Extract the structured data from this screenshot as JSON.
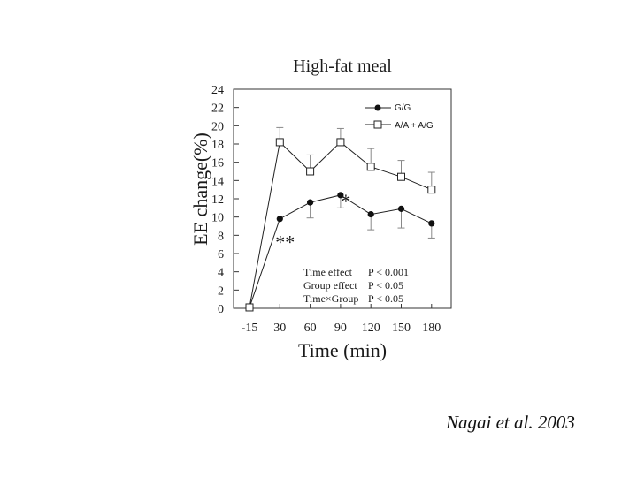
{
  "chart_data": {
    "type": "line",
    "title": "High-fat meal",
    "xlabel": "Time (min)",
    "ylabel": "EE change(%)",
    "categories": [
      "-15",
      "30",
      "60",
      "90",
      "120",
      "150",
      "180"
    ],
    "x": [
      -15,
      30,
      60,
      90,
      120,
      150,
      180
    ],
    "ylim": [
      0,
      24
    ],
    "yticks": [
      "0",
      "2",
      "4",
      "6",
      "8",
      "10",
      "12",
      "14",
      "16",
      "18",
      "20",
      "22",
      "24"
    ],
    "grid": false,
    "legend_position": "top-right",
    "series": [
      {
        "name": "G/G",
        "marker": "filled-circle",
        "values": [
          0.1,
          9.8,
          11.6,
          12.4,
          10.3,
          10.9,
          9.3
        ],
        "error": [
          0,
          0,
          1.7,
          1.4,
          1.7,
          2.1,
          1.6
        ],
        "error_direction": "down"
      },
      {
        "name": "A/A + A/G",
        "marker": "open-square",
        "values": [
          0.1,
          18.2,
          15.0,
          18.2,
          15.5,
          14.4,
          13.0
        ],
        "error": [
          0,
          1.6,
          1.8,
          1.5,
          2.0,
          1.8,
          1.9
        ],
        "error_direction": "up"
      }
    ],
    "annotations": [
      {
        "text": "**",
        "x": 30
      },
      {
        "text": "*",
        "x": 90
      }
    ],
    "stats": [
      {
        "label": "Time effect",
        "p": "P < 0.001"
      },
      {
        "label": "Group effect",
        "p": "P < 0.05"
      },
      {
        "label": "Time×Group",
        "p": "P < 0.05"
      }
    ]
  },
  "citation": "Nagai et al. 2003"
}
